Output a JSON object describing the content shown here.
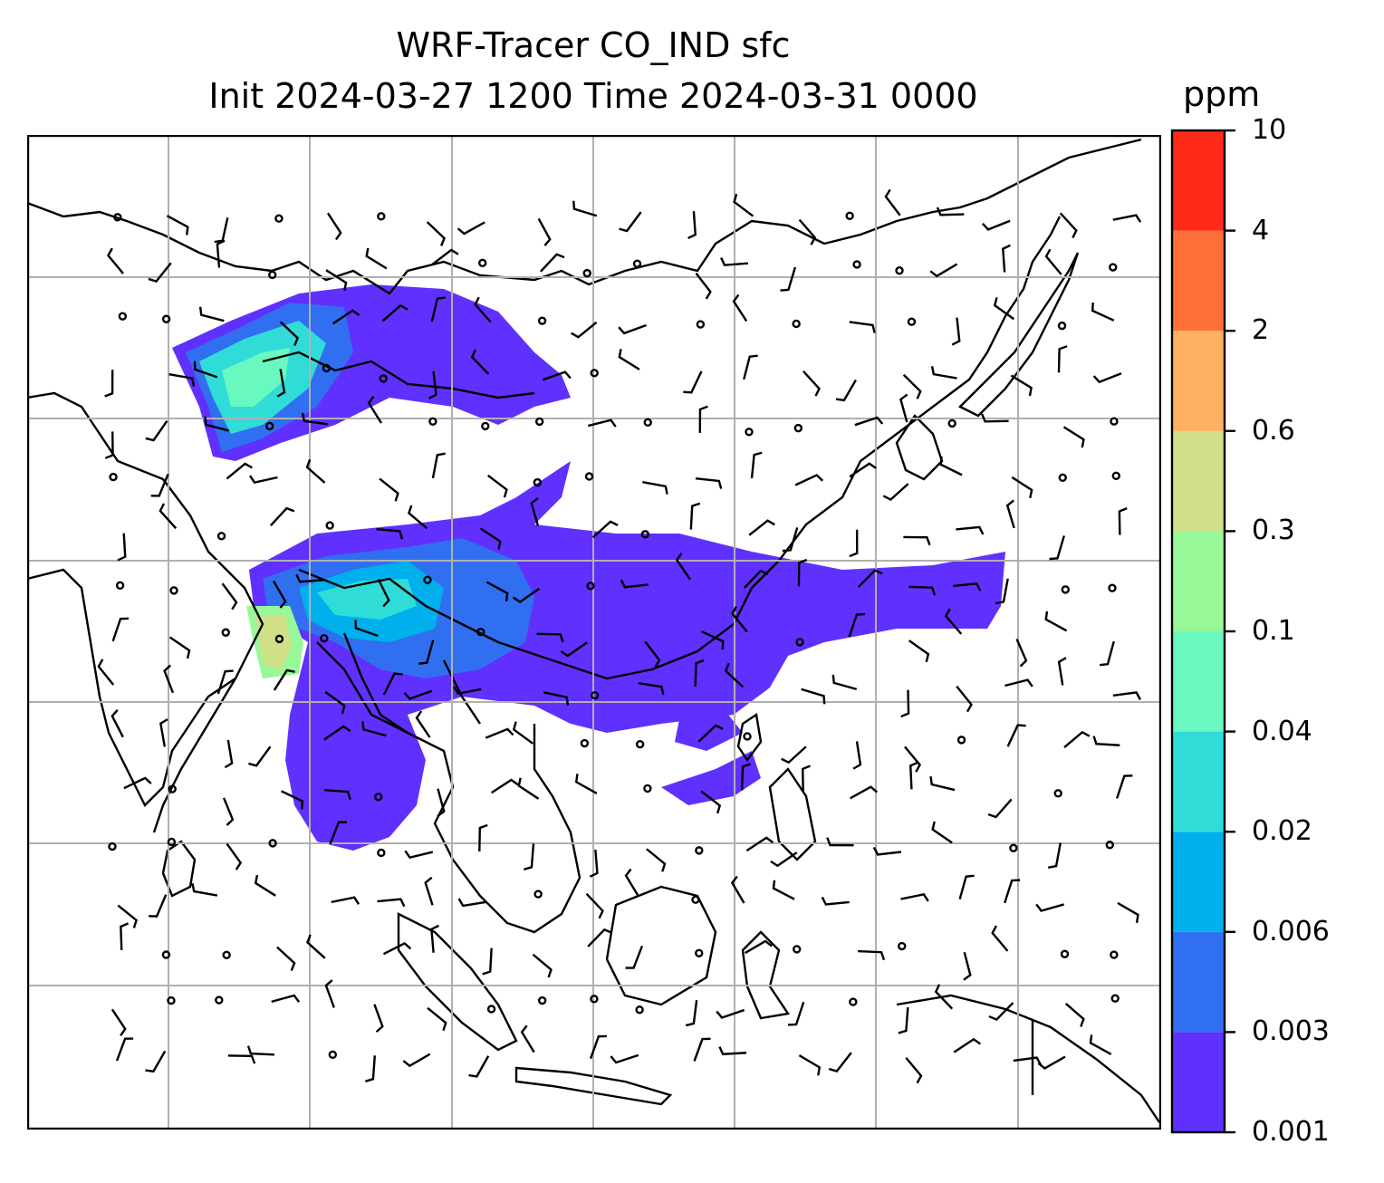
{
  "title": {
    "line1": "WRF-Tracer CO_IND sfc",
    "line2": "Init 2024-03-27 1200 Time 2024-03-31 0000"
  },
  "colorbar": {
    "unit": "ppm",
    "tick_labels": [
      "10",
      "4",
      "2",
      "0.6",
      "0.3",
      "0.1",
      "0.04",
      "0.02",
      "0.006",
      "0.003",
      "0.001"
    ],
    "colors": [
      "#6030ff",
      "#3070f0",
      "#00b0ec",
      "#30dcd8",
      "#68f8c0",
      "#98f898",
      "#d0e088",
      "#ffb060",
      "#ff7038",
      "#ff2a18"
    ]
  },
  "map": {
    "field": "CO_IND tracer concentration",
    "overlay": "wind barbs",
    "gridlines": true
  }
}
